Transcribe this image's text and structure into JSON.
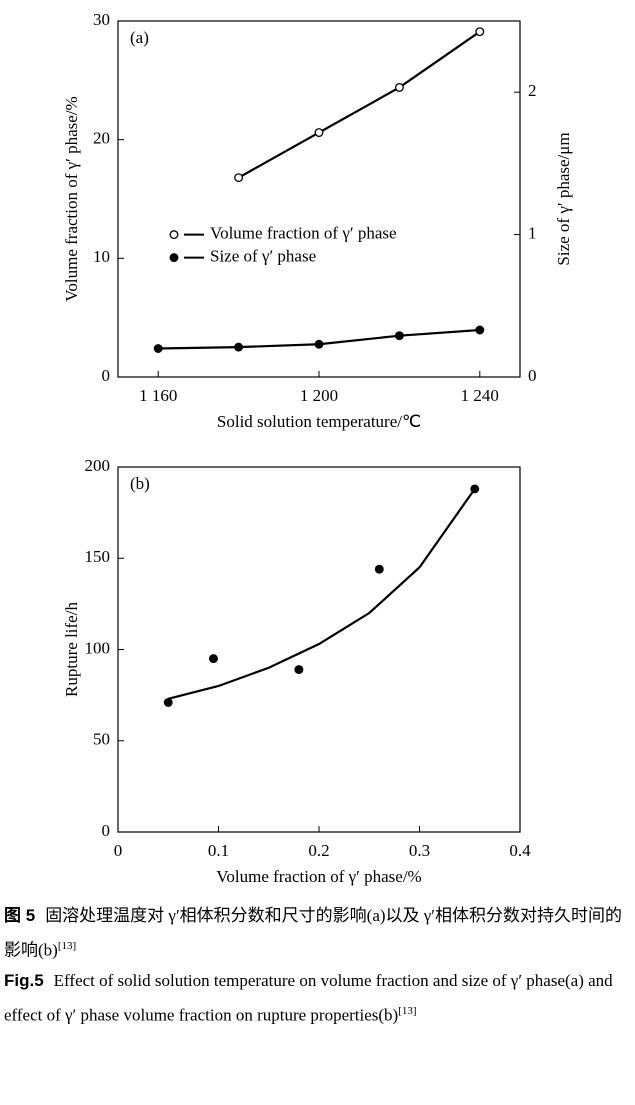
{
  "chart_data": [
    {
      "type": "line",
      "annotation": "(a)",
      "x_label": "Solid solution temperature/℃",
      "y_label": "Volume fraction of γ′ phase/%",
      "y2_label": "Size of γ′ phase/μm",
      "x": [
        1160,
        1180,
        1200,
        1220,
        1240
      ],
      "series": [
        {
          "name": "Volume fraction of γ′ phase",
          "color": "#000000",
          "marker": "open",
          "values": [
            null,
            16.8,
            20.6,
            24.4,
            29.1
          ]
        },
        {
          "name": "Size of γ′ phase",
          "color": "#000000",
          "marker": "filled",
          "axis": "y2",
          "values": [
            0.2,
            0.21,
            0.23,
            0.29,
            0.33
          ]
        }
      ],
      "xlim": [
        1150,
        1250
      ],
      "xticks": [
        {
          "value": 1160,
          "label": "1 160"
        },
        {
          "value": 1200,
          "label": "1 200"
        },
        {
          "value": 1240,
          "label": "1 240"
        }
      ],
      "ylim": [
        0,
        30
      ],
      "yticks": [
        0,
        10,
        20,
        30
      ],
      "y2lim": [
        0,
        2.5
      ],
      "y2ticks": [
        0,
        1,
        2
      ],
      "legend": "center-left"
    },
    {
      "type": "scatter",
      "annotation": "(b)",
      "x_label": "Volume fraction of γ′ phase/%",
      "y_label": "Rupture life/h",
      "series": [
        {
          "color": "#000000",
          "style": "markers",
          "x": [
            0.05,
            0.095,
            0.18,
            0.26,
            0.355
          ],
          "values": [
            71,
            95,
            89,
            144,
            188
          ]
        },
        {
          "color": "#000000",
          "style": "line",
          "x": [
            0.05,
            0.1,
            0.15,
            0.2,
            0.25,
            0.3,
            0.355
          ],
          "values": [
            73,
            80,
            90,
            103,
            120,
            145,
            188
          ]
        }
      ],
      "xlim": [
        0,
        0.4
      ],
      "xticks": [
        0,
        0.1,
        0.2,
        0.3,
        0.4
      ],
      "ylim": [
        0,
        200
      ],
      "yticks": [
        0,
        50,
        100,
        150,
        200
      ]
    }
  ],
  "caption": {
    "cn_label": "图 5",
    "cn_text": "固溶处理温度对 γ′相体积分数和尺寸的影响(a)以及 γ′相体积分数对持久时间的影响(b)",
    "cn_ref": "[13]",
    "en_label": "Fig.5",
    "en_text": "Effect of solid solution temperature on volume fraction and size of γ′ phase(a) and effect of γ′ phase volume fraction on rupture properties(b)",
    "en_ref": "[13]"
  }
}
